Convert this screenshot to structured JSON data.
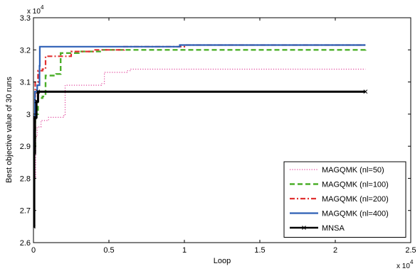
{
  "chart_data": {
    "type": "line",
    "xlabel": "Loop",
    "ylabel": "Best objective value of 30 runs",
    "x_exponent_label": "x 10",
    "x_exponent": "4",
    "y_exponent_label": "x 10",
    "y_exponent": "4",
    "xlim": [
      0,
      25000
    ],
    "ylim": [
      26000,
      33000
    ],
    "x_ticks": [
      0,
      5000,
      10000,
      15000,
      20000,
      25000
    ],
    "x_tick_labels": [
      "0",
      "0.5",
      "1",
      "1.5",
      "2",
      "2.5"
    ],
    "y_ticks": [
      26000,
      27000,
      28000,
      29000,
      30000,
      31000,
      32000,
      33000
    ],
    "y_tick_labels": [
      "2.6",
      "2.7",
      "2.8",
      "2.9",
      "3",
      "3.1",
      "3.2",
      "3.3"
    ],
    "grid": false,
    "legend_position": "bottom-right",
    "series": [
      {
        "name": "MAGQMK (nl=50)",
        "color": "#e0459b",
        "dash": "1.2,2.2",
        "width": 1.2,
        "marker": "none",
        "points": [
          [
            0,
            26600
          ],
          [
            80,
            28000
          ],
          [
            150,
            29300
          ],
          [
            250,
            29600
          ],
          [
            500,
            29800
          ],
          [
            1000,
            29900
          ],
          [
            2000,
            29950
          ],
          [
            2100,
            30900
          ],
          [
            4500,
            30950
          ],
          [
            4700,
            31300
          ],
          [
            6200,
            31350
          ],
          [
            6400,
            31400
          ],
          [
            22000,
            31400
          ]
        ]
      },
      {
        "name": "MAGQMK (nl=100)",
        "color": "#4caf2a",
        "dash": "7,4",
        "width": 2.4,
        "marker": "none",
        "points": [
          [
            0,
            26600
          ],
          [
            60,
            29000
          ],
          [
            120,
            30000
          ],
          [
            300,
            30500
          ],
          [
            600,
            30550
          ],
          [
            800,
            31200
          ],
          [
            1500,
            31250
          ],
          [
            1800,
            31900
          ],
          [
            3000,
            31950
          ],
          [
            4500,
            32000
          ],
          [
            22000,
            32050
          ]
        ]
      },
      {
        "name": "MAGQMK (nl=200)",
        "color": "#e03030",
        "dash": "7,3,2,3",
        "width": 2.2,
        "marker": "none",
        "points": [
          [
            0,
            26600
          ],
          [
            60,
            29500
          ],
          [
            120,
            31000
          ],
          [
            300,
            31350
          ],
          [
            600,
            31400
          ],
          [
            800,
            31800
          ],
          [
            2500,
            31950
          ],
          [
            4000,
            32000
          ],
          [
            6000,
            32100
          ],
          [
            9000,
            32100
          ],
          [
            10000,
            32150
          ],
          [
            22000,
            32150
          ]
        ]
      },
      {
        "name": "MAGQMK (nl=400)",
        "color": "#2c5fb5",
        "dash": "",
        "width": 2.2,
        "marker": "none",
        "points": [
          [
            0,
            26500
          ],
          [
            40,
            29500
          ],
          [
            100,
            30700
          ],
          [
            250,
            30900
          ],
          [
            400,
            31500
          ],
          [
            420,
            32100
          ],
          [
            9600,
            32100
          ],
          [
            9700,
            32150
          ],
          [
            22000,
            32150
          ]
        ]
      },
      {
        "name": "MNSA",
        "color": "#000000",
        "dash": "",
        "width": 3,
        "marker": "x",
        "points": [
          [
            0,
            26500
          ],
          [
            50,
            28800
          ],
          [
            100,
            29900
          ],
          [
            200,
            30400
          ],
          [
            300,
            30700
          ],
          [
            22000,
            30700
          ]
        ]
      }
    ]
  }
}
